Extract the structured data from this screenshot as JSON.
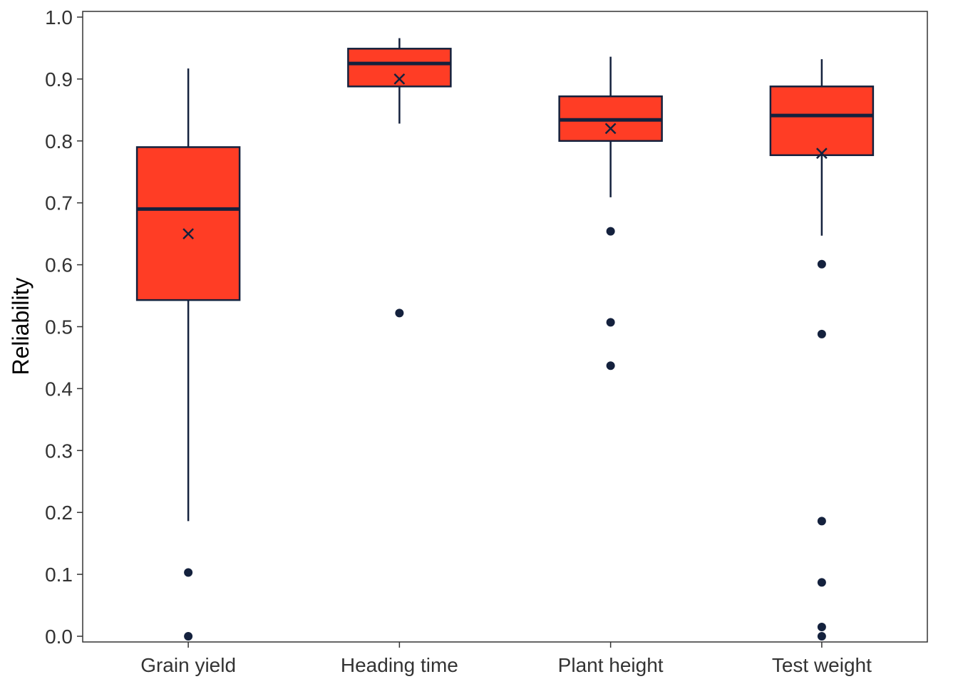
{
  "chart_data": {
    "type": "box",
    "ylabel": "Reliability",
    "xlabel": "",
    "ylim": [
      -0.01,
      1.01
    ],
    "y_ticks": [
      "0.0",
      "0.1",
      "0.2",
      "0.3",
      "0.4",
      "0.5",
      "0.6",
      "0.7",
      "0.8",
      "0.9",
      "1.0"
    ],
    "categories": [
      "Grain yield",
      "Heading time",
      "Plant height",
      "Test weight"
    ],
    "grid": false,
    "series": [
      {
        "category": "Grain yield",
        "whisker_low": 0.186,
        "q1": 0.543,
        "median": 0.69,
        "q3": 0.79,
        "whisker_high": 0.917,
        "mean": 0.65,
        "outliers": [
          0.103,
          0.0
        ]
      },
      {
        "category": "Heading time",
        "whisker_low": 0.828,
        "q1": 0.888,
        "median": 0.925,
        "q3": 0.949,
        "whisker_high": 0.966,
        "mean": 0.9,
        "outliers": [
          0.522
        ]
      },
      {
        "category": "Plant height",
        "whisker_low": 0.709,
        "q1": 0.8,
        "median": 0.834,
        "q3": 0.872,
        "whisker_high": 0.936,
        "mean": 0.82,
        "outliers": [
          0.654,
          0.507,
          0.437
        ]
      },
      {
        "category": "Test weight",
        "whisker_low": 0.647,
        "q1": 0.777,
        "median": 0.841,
        "q3": 0.888,
        "whisker_high": 0.932,
        "mean": 0.78,
        "outliers": [
          0.601,
          0.488,
          0.186,
          0.087,
          0.015,
          0.0
        ]
      }
    ],
    "colors": {
      "box_fill": "#FF3D25",
      "line": "#14213D",
      "axis": "#333333"
    }
  }
}
